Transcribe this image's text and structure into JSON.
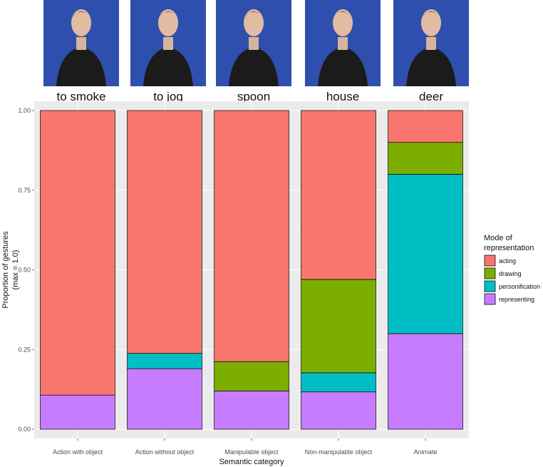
{
  "photos": [
    {
      "label": "to smoke"
    },
    {
      "label": "to jog"
    },
    {
      "label": "spoon"
    },
    {
      "label": "house"
    },
    {
      "label": "deer"
    }
  ],
  "chart_data": {
    "type": "bar",
    "stacked": true,
    "xlabel": "Semantic category",
    "ylabel_lines": [
      "Proportion of gestures",
      "(max = 1.0)"
    ],
    "ylim": [
      0,
      1
    ],
    "yticks": [
      "0.00",
      "0.25",
      "0.50",
      "0.75",
      "1.00"
    ],
    "ytick_values": [
      0,
      0.25,
      0.5,
      0.75,
      1.0
    ],
    "grid": true,
    "categories": [
      "Action with object",
      "Action without object",
      "Manipulable object",
      "Non-manipulable object",
      "Animate"
    ],
    "legend": {
      "title_lines": [
        "Mode of",
        "representation"
      ],
      "placement": "right"
    },
    "series": [
      {
        "name": "representing",
        "color": "#C77CFF",
        "values": [
          0.107,
          0.19,
          0.12,
          0.117,
          0.3
        ]
      },
      {
        "name": "personification",
        "color": "#00BFC4",
        "values": [
          0.0,
          0.048,
          0.0,
          0.06,
          0.5
        ]
      },
      {
        "name": "drawing",
        "color": "#7CAE00",
        "values": [
          0.0,
          0.0,
          0.092,
          0.293,
          0.1
        ]
      },
      {
        "name": "acting",
        "color": "#F8766D",
        "values": [
          0.893,
          0.762,
          0.788,
          0.53,
          0.1
        ]
      }
    ],
    "legend_order": [
      "acting",
      "drawing",
      "personification",
      "representing"
    ]
  }
}
